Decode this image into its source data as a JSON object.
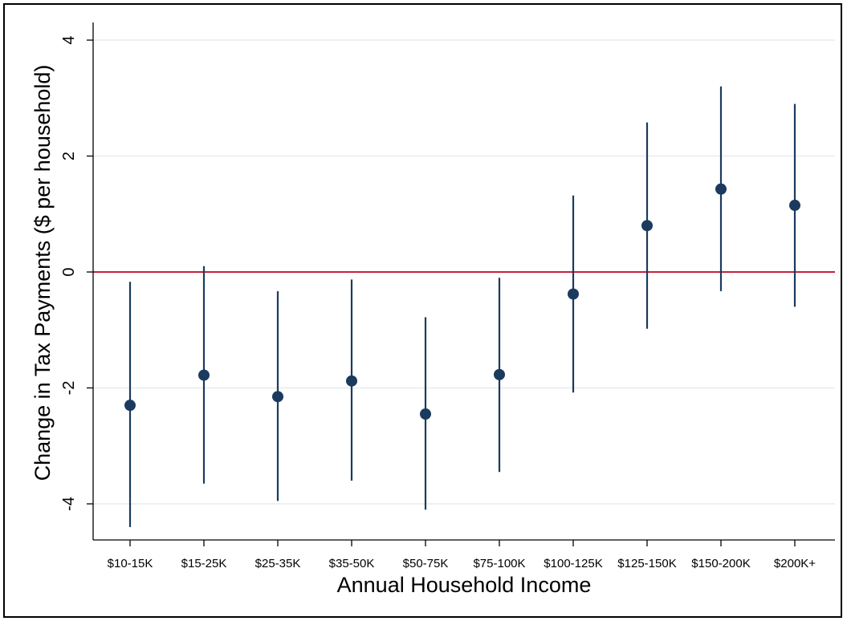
{
  "chart_data": {
    "type": "scatter",
    "title": "",
    "xlabel": "Annual Household Income",
    "ylabel": "Change in Tax Payments ($ per household)",
    "categories": [
      "$10-15K",
      "$15-25K",
      "$25-35K",
      "$35-50K",
      "$50-75K",
      "$75-100K",
      "$100-125K",
      "$125-150K",
      "$150-200K",
      "$200K+"
    ],
    "series": [
      {
        "values": [
          -2.3,
          -1.78,
          -2.15,
          -1.88,
          -2.45,
          -1.77,
          -0.38,
          0.8,
          1.43,
          1.15
        ],
        "ci_low": [
          -4.4,
          -3.65,
          -3.95,
          -3.6,
          -4.1,
          -3.45,
          -2.08,
          -0.98,
          -0.33,
          -0.6
        ],
        "ci_high": [
          -0.17,
          0.1,
          -0.33,
          -0.13,
          -0.78,
          -0.1,
          1.32,
          2.58,
          3.2,
          2.9
        ]
      }
    ],
    "ylim": [
      -4.6,
      4.2
    ],
    "yticks": [
      -4,
      -2,
      0,
      2,
      4
    ],
    "reference_line": {
      "y": 0,
      "color": "#c8203c"
    },
    "grid": true,
    "legend": "none",
    "colors": {
      "marker": "#1b3a5e",
      "grid": "#e6ecec",
      "axis": "#000000"
    }
  }
}
